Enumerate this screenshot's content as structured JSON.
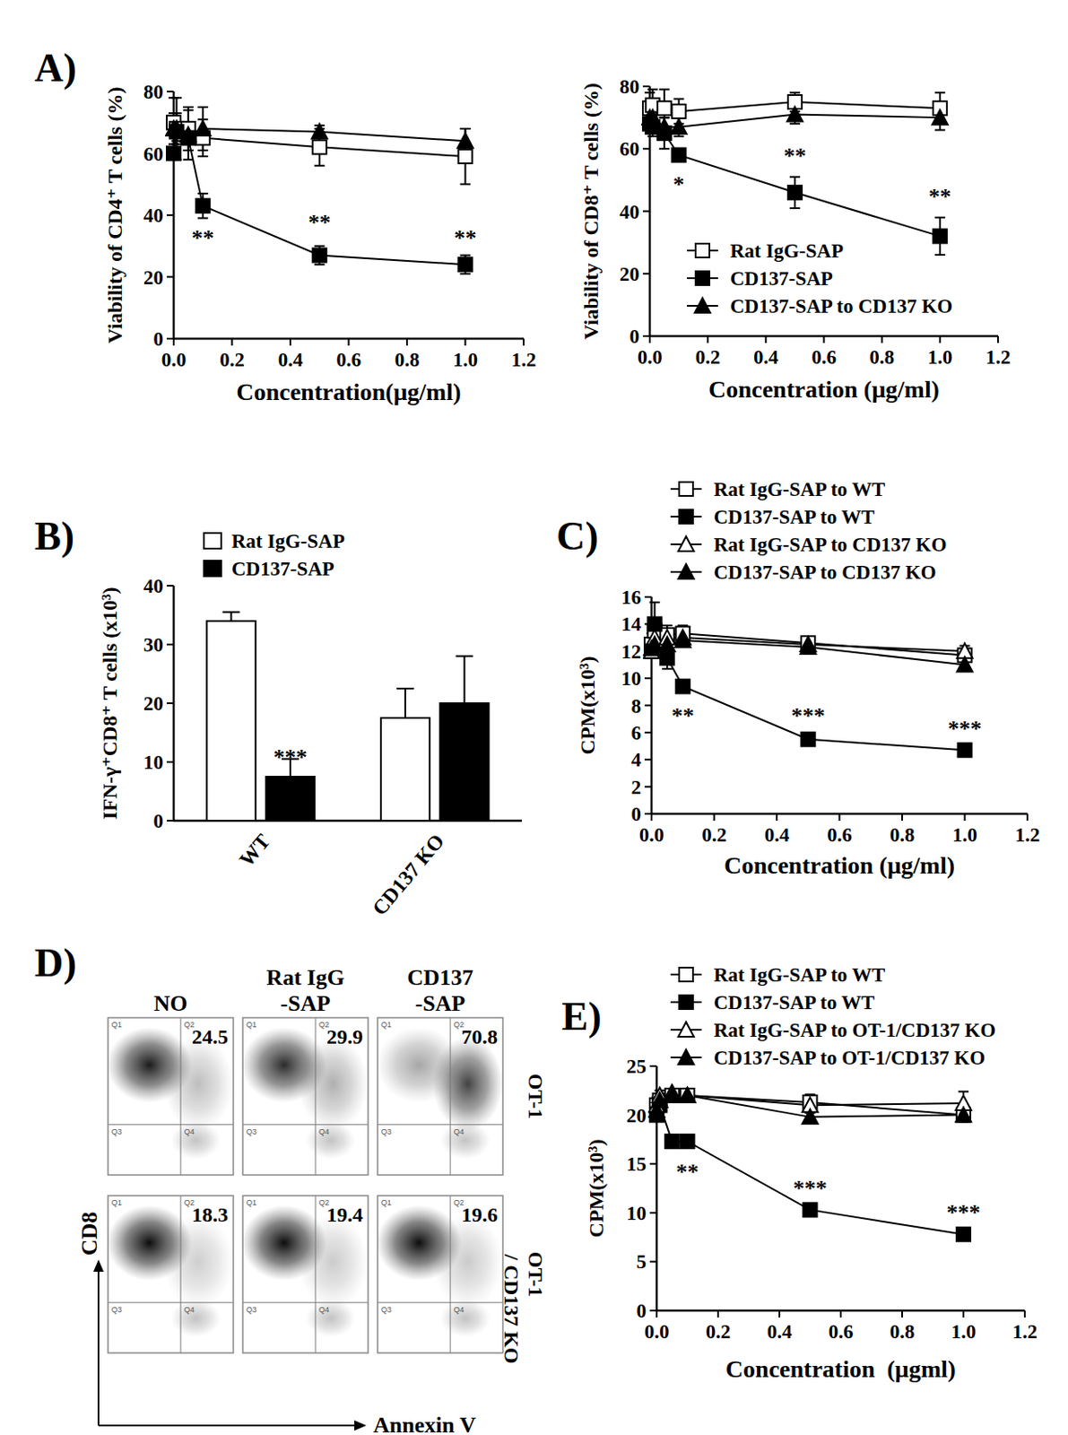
{
  "chart_data": [
    {
      "type": "line",
      "panel_label": "A)",
      "y_label": "Viability of CD4⁺ T cells (%)",
      "x_label": "Concentration(μg/ml)",
      "x": [
        0,
        0.01,
        0.05,
        0.1,
        0.5,
        1
      ],
      "xlim": [
        0,
        1.2
      ],
      "xticks": [
        {
          "value": 0,
          "label": "0.0"
        },
        0.2,
        0.4,
        0.6,
        0.8,
        {
          "value": 1,
          "label": "1.0"
        },
        1.2
      ],
      "ylim": [
        0,
        80
      ],
      "yticks": [
        0,
        20,
        40,
        60,
        80
      ],
      "series": [
        {
          "color": "#000000",
          "marker": "open-square",
          "values": [
            70,
            68,
            68,
            65,
            62,
            59
          ],
          "errors": [
            8,
            10,
            7,
            6,
            6,
            9
          ]
        },
        {
          "color": "#000000",
          "marker": "square",
          "values": [
            60,
            67,
            65,
            43,
            27,
            24
          ],
          "errors": [
            2,
            3,
            4,
            4,
            3,
            3
          ]
        },
        {
          "color": "#000000",
          "marker": "triangle",
          "values": [
            68,
            68,
            66,
            68,
            67,
            64
          ],
          "errors": [
            5,
            5,
            8,
            7,
            2,
            4
          ]
        }
      ],
      "annotations": [
        {
          "text": "**",
          "x": 0.1,
          "y": 33
        },
        {
          "text": "**",
          "x": 0.5,
          "y": 38
        },
        {
          "text": "**",
          "x": 1,
          "y": 33
        }
      ]
    },
    {
      "type": "line",
      "y_label": "Viability of CD8⁺ T cells (%)",
      "x_label": "Concentration (μg/ml)",
      "x": [
        0,
        0.01,
        0.05,
        0.1,
        0.5,
        1
      ],
      "xlim": [
        0,
        1.2
      ],
      "xticks": [
        {
          "value": 0,
          "label": "0.0"
        },
        0.2,
        0.4,
        0.6,
        0.8,
        {
          "value": 1,
          "label": "1.0"
        },
        1.2
      ],
      "ylim": [
        0,
        80
      ],
      "yticks": [
        0,
        20,
        40,
        60,
        80
      ],
      "legend": "lower right",
      "series": [
        {
          "name": "Rat IgG-SAP",
          "color": "#000000",
          "marker": "open-square",
          "values": [
            73,
            74,
            73,
            72,
            75,
            73
          ],
          "errors": [
            5,
            5,
            6,
            4,
            3,
            5
          ]
        },
        {
          "name": "CD137-SAP",
          "color": "#000000",
          "marker": "square",
          "values": [
            68,
            67,
            65,
            58,
            46,
            32
          ],
          "errors": [
            3,
            3,
            5,
            2,
            5,
            6
          ]
        },
        {
          "name": "CD137-SAP to CD137 KO",
          "color": "#000000",
          "marker": "triangle",
          "values": [
            70,
            70,
            67,
            67,
            71,
            70
          ],
          "errors": [
            3,
            4,
            3,
            3,
            3,
            4
          ]
        }
      ],
      "annotations": [
        {
          "text": "*",
          "x": 0.1,
          "y": 49
        },
        {
          "text": "**",
          "x": 0.5,
          "y": 58
        },
        {
          "text": "**",
          "x": 1,
          "y": 45
        }
      ]
    },
    {
      "type": "bar",
      "panel_label": "B)",
      "y_label": "IFN-γ⁺CD8⁺ T cells (x10³)",
      "categories": [
        "WT",
        "CD137 KO"
      ],
      "ylim": [
        0,
        40
      ],
      "yticks": [
        0,
        10,
        20,
        30,
        40
      ],
      "legend": "upper left",
      "series": [
        {
          "name": "Rat IgG-SAP",
          "color": "#ffffff",
          "values": [
            34,
            17.5
          ],
          "errors": [
            1.5,
            5
          ]
        },
        {
          "name": "CD137-SAP",
          "color": "#000000",
          "values": [
            7.5,
            20
          ],
          "errors": [
            3,
            8
          ]
        }
      ],
      "annotations": [
        {
          "text": "***",
          "x": "WT",
          "series": "CD137-SAP",
          "y": 11
        }
      ]
    },
    {
      "type": "line",
      "panel_label": "C)",
      "y_label": "CPM(x10³)",
      "x_label": "Concentration (μg/ml)",
      "x": [
        0,
        0.01,
        0.05,
        0.1,
        0.5,
        1
      ],
      "xlim": [
        0,
        1.2
      ],
      "xticks": [
        {
          "value": 0,
          "label": "0.0"
        },
        0.2,
        0.4,
        0.6,
        0.8,
        {
          "value": 1,
          "label": "1.0"
        },
        1.2
      ],
      "ylim": [
        0,
        16
      ],
      "yticks": [
        0,
        2,
        4,
        6,
        8,
        10,
        12,
        14,
        16
      ],
      "legend": "top",
      "series": [
        {
          "name": "Rat IgG-SAP to WT",
          "color": "#000000",
          "marker": "open-square",
          "values": [
            12.5,
            13.5,
            13.2,
            13.3,
            12.6,
            11.7
          ],
          "errors": [
            0.8,
            0.6,
            0.7,
            0.6,
            0.4,
            0.4
          ]
        },
        {
          "name": "CD137-SAP to WT",
          "color": "#000000",
          "marker": "square",
          "values": [
            12,
            14,
            11.5,
            9.4,
            5.5,
            4.7
          ],
          "errors": [
            0.5,
            1.6,
            0.8,
            0.3,
            0.3,
            0.2
          ]
        },
        {
          "name": "Rat IgG-SAP to CD137 KO",
          "color": "#000000",
          "marker": "open-triangle",
          "values": [
            12,
            13,
            13,
            13,
            12.5,
            12
          ],
          "errors": [
            0.5,
            0.5,
            0.5,
            0.5,
            0.3,
            0.4
          ]
        },
        {
          "name": "CD137-SAP to CD137 KO",
          "color": "#000000",
          "marker": "triangle",
          "values": [
            12.2,
            12.5,
            12.5,
            12.8,
            12.3,
            11
          ],
          "errors": [
            0.5,
            0.5,
            0.5,
            0.5,
            0.3,
            0.4
          ]
        }
      ],
      "annotations": [
        {
          "text": "**",
          "x": 0.1,
          "y": 7.3
        },
        {
          "text": "***",
          "x": 0.5,
          "y": 7.3
        },
        {
          "text": "***",
          "x": 1,
          "y": 6.4
        }
      ]
    },
    {
      "type": "dot_plot_grid",
      "panel_label": "D)",
      "columns": [
        [
          "NO"
        ],
        [
          "Rat IgG",
          "-SAP"
        ],
        [
          "CD137",
          "-SAP"
        ]
      ],
      "rows": [
        [
          "OT-1"
        ],
        [
          "OT-1",
          "/ CD137 KO"
        ]
      ],
      "values": [
        [
          24.5,
          29.9,
          70.8
        ],
        [
          18.3,
          19.4,
          19.6
        ]
      ],
      "quadrants": [
        "Q1",
        "Q2",
        "Q3",
        "Q4"
      ],
      "x_label": "Annexin V",
      "y_label": "CD8"
    },
    {
      "type": "line",
      "panel_label": "E)",
      "y_label": "CPM(x10³)",
      "x_label": "Concentration  (μgml)",
      "x": [
        0,
        0.01,
        0.05,
        0.1,
        0.5,
        1
      ],
      "xlim": [
        0,
        1.2
      ],
      "xticks": [
        {
          "value": 0,
          "label": "0.0"
        },
        0.2,
        0.4,
        0.6,
        0.8,
        {
          "value": 1,
          "label": "1.0"
        },
        1.2
      ],
      "ylim": [
        0,
        25
      ],
      "yticks": [
        0,
        5,
        10,
        15,
        20,
        25
      ],
      "legend": "top",
      "series": [
        {
          "name": "Rat IgG-SAP to WT",
          "color": "#000000",
          "marker": "open-square",
          "values": [
            21,
            21.5,
            22,
            22,
            21.3,
            20
          ],
          "errors": [
            0.8,
            0.6,
            0.5,
            0.5,
            0.8,
            0.7
          ]
        },
        {
          "name": "CD137-SAP to WT",
          "color": "#000000",
          "marker": "square",
          "values": [
            20,
            21,
            17.3,
            17.3,
            10.3,
            7.8
          ],
          "errors": [
            0.5,
            0.6,
            0.3,
            0.3,
            0.3,
            0.3
          ]
        },
        {
          "name": "Rat IgG-SAP to OT-1/CD137 KO",
          "color": "#000000",
          "marker": "open-triangle",
          "values": [
            21,
            22,
            22.3,
            22,
            21,
            21.2
          ],
          "errors": [
            0.5,
            0.5,
            0.4,
            0.4,
            0.5,
            1.2
          ]
        },
        {
          "name": "CD137-SAP to OT-1/CD137 KO",
          "color": "#000000",
          "marker": "triangle",
          "values": [
            20.5,
            21.5,
            22,
            22,
            19.8,
            20
          ],
          "errors": [
            0.5,
            0.5,
            0.4,
            0.4,
            0.4,
            0.5
          ]
        }
      ],
      "annotations": [
        {
          "text": "**",
          "x": 0.1,
          "y": 14.3
        },
        {
          "text": "***",
          "x": 0.5,
          "y": 12.6
        },
        {
          "text": "***",
          "x": 1,
          "y": 10.2
        }
      ]
    }
  ]
}
